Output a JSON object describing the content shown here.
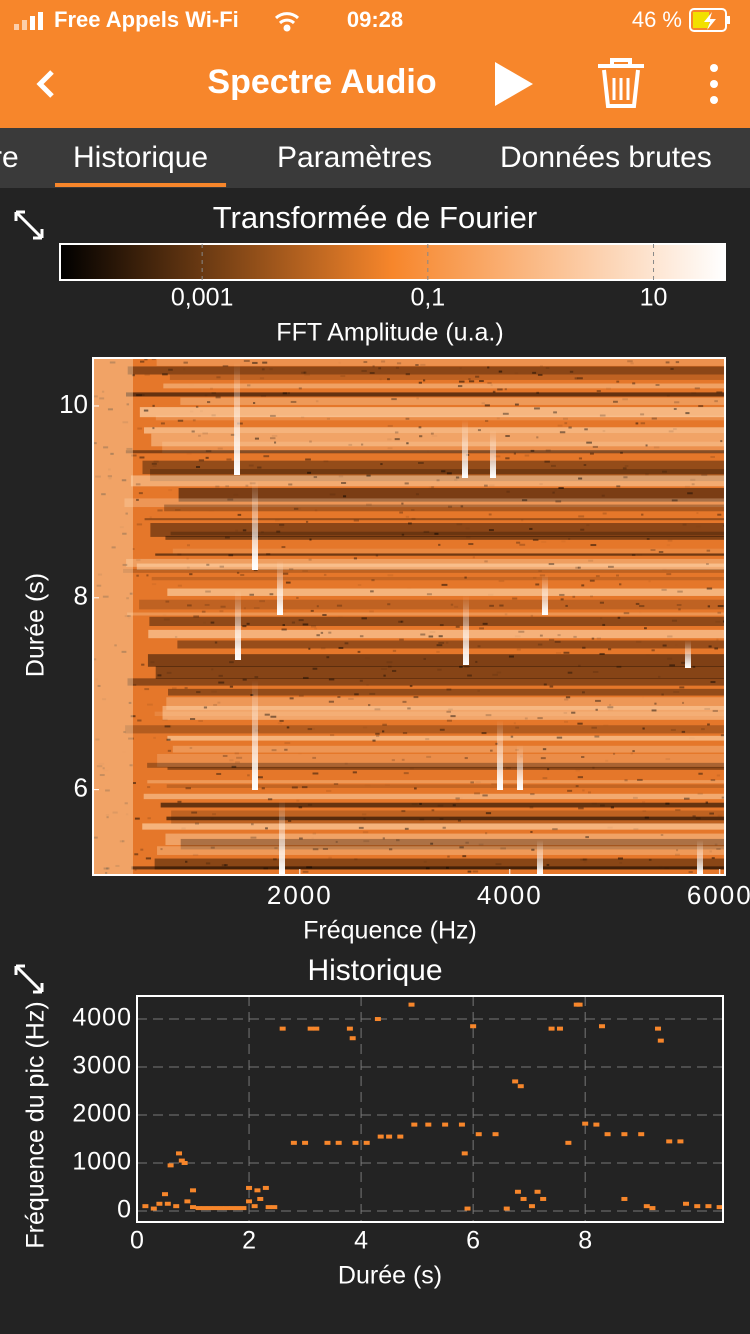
{
  "status_bar": {
    "carrier": "Free Appels Wi-Fi",
    "time": "09:28",
    "battery": "46 %"
  },
  "app_bar": {
    "title": "Spectre Audio"
  },
  "tabs": [
    "re",
    "Historique",
    "Paramètres",
    "Données brutes"
  ],
  "active_tab": 1,
  "chart_data": [
    {
      "type": "heatmap",
      "title": "Transformée de Fourier",
      "colorbar_label": "FFT Amplitude (u.a.)",
      "colorbar_scale": "log",
      "clim": [
        5.5e-05,
        43
      ],
      "cticks": [
        {
          "value": 0.001,
          "label": "0,001"
        },
        {
          "value": 0.1,
          "label": "0,1"
        },
        10
      ],
      "colormap": [
        "#000000",
        "#f7862b",
        "#ffffff"
      ],
      "xlabel": "Fréquence (Hz)",
      "ylabel": "Durée (s)",
      "xlim": [
        30,
        6050
      ],
      "xticks": [
        2000,
        4000,
        6000
      ],
      "ylim": [
        5.11,
        10.5
      ],
      "yticks": [
        6,
        8,
        10
      ]
    },
    {
      "type": "scatter",
      "title": "Historique",
      "xlabel": "Durée (s)",
      "ylabel": "Fréquence du pic (Hz)",
      "xlim": [
        0,
        10.46
      ],
      "xticks": [
        0,
        2,
        4,
        6,
        8
      ],
      "ylim": [
        -230,
        4480
      ],
      "yticks": [
        0,
        1000,
        2000,
        3000,
        4000
      ],
      "grid": true,
      "color": "#f7862b",
      "x": [
        0.15,
        0.3,
        0.4,
        0.5,
        0.55,
        0.6,
        0.7,
        0.75,
        0.8,
        0.85,
        0.9,
        1.0,
        1.0,
        1.1,
        1.2,
        1.3,
        1.4,
        1.5,
        1.6,
        1.7,
        1.8,
        1.9,
        2.0,
        2.0,
        2.1,
        2.15,
        2.2,
        2.3,
        2.35,
        2.45,
        2.6,
        2.8,
        3.0,
        3.1,
        3.2,
        3.4,
        3.6,
        3.8,
        3.85,
        3.9,
        4.1,
        4.3,
        4.35,
        4.5,
        4.7,
        4.9,
        4.95,
        5.2,
        5.5,
        5.8,
        5.85,
        5.9,
        6.0,
        6.1,
        6.4,
        6.6,
        6.75,
        6.85,
        6.8,
        6.9,
        7.05,
        7.15,
        7.25,
        7.4,
        7.55,
        7.7,
        7.85,
        7.9,
        8.0,
        8.2,
        8.3,
        8.4,
        8.7,
        8.7,
        9.0,
        9.1,
        9.2,
        9.3,
        9.35,
        9.5,
        9.7,
        9.8,
        10.0,
        10.2,
        10.4
      ],
      "values": [
        100,
        50,
        150,
        350,
        150,
        950,
        100,
        1200,
        1050,
        1000,
        200,
        430,
        80,
        60,
        60,
        60,
        60,
        60,
        60,
        60,
        60,
        60,
        200,
        480,
        100,
        430,
        250,
        480,
        80,
        80,
        3800,
        1420,
        1420,
        3800,
        3800,
        1420,
        1420,
        3800,
        3600,
        1420,
        1420,
        4000,
        1550,
        1550,
        1550,
        4300,
        1800,
        1800,
        1800,
        1800,
        1200,
        50,
        3850,
        1600,
        1600,
        50,
        2700,
        2600,
        400,
        250,
        100,
        400,
        250,
        3800,
        3800,
        1420,
        4300,
        4300,
        1820,
        1800,
        3850,
        1600,
        1600,
        250,
        1600,
        100,
        60,
        3800,
        3550,
        1450,
        1450,
        150,
        100,
        100,
        80
      ]
    }
  ]
}
